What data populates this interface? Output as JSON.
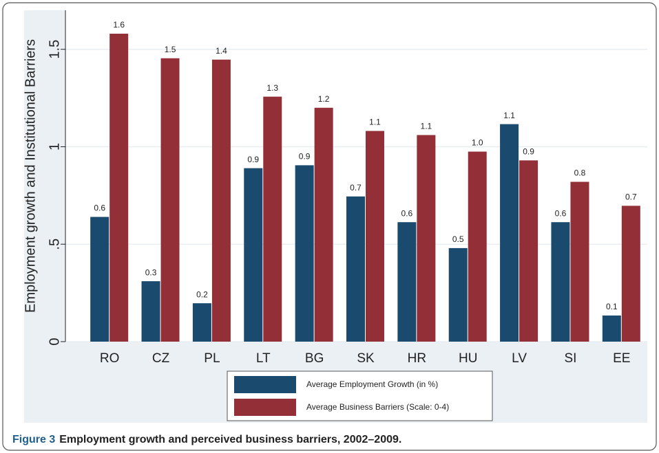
{
  "chart_data": {
    "type": "bar",
    "y_label": "Employment growth and  Institutional Barriers",
    "categories": [
      "RO",
      "CZ",
      "PL",
      "LT",
      "BG",
      "SK",
      "HR",
      "HU",
      "LV",
      "SI",
      "EE"
    ],
    "series": [
      {
        "name": "Average Employment Growth (in %)",
        "color": "#1b4a6f",
        "values": [
          0.64,
          0.31,
          0.197,
          0.89,
          0.905,
          0.745,
          0.613,
          0.48,
          1.116,
          0.613,
          0.134
        ],
        "value_labels": [
          "0.6",
          "0.3",
          "0.2",
          "0.9",
          "0.9",
          "0.7",
          "0.6",
          "0.5",
          "1.1",
          "0.6",
          "0.1"
        ]
      },
      {
        "name": "Average Business Barriers (Scale: 0-4)",
        "color": "#932f37",
        "values": [
          1.58,
          1.454,
          1.447,
          1.257,
          1.2,
          1.081,
          1.06,
          0.975,
          0.93,
          0.82,
          0.697
        ],
        "value_labels": [
          "1.6",
          "1.5",
          "1.4",
          "1.3",
          "1.2",
          "1.1",
          "1.1",
          "1.0",
          "0.9",
          "0.8",
          "0.7"
        ]
      }
    ],
    "ylim": [
      0,
      1.7
    ],
    "yticks": [
      0,
      {
        "value": 0.5,
        "label": ".5"
      },
      1,
      1.5
    ],
    "grid": true
  },
  "caption": {
    "label": "Figure 3",
    "text": "Employment growth and perceived business barriers, 2002–2009."
  }
}
